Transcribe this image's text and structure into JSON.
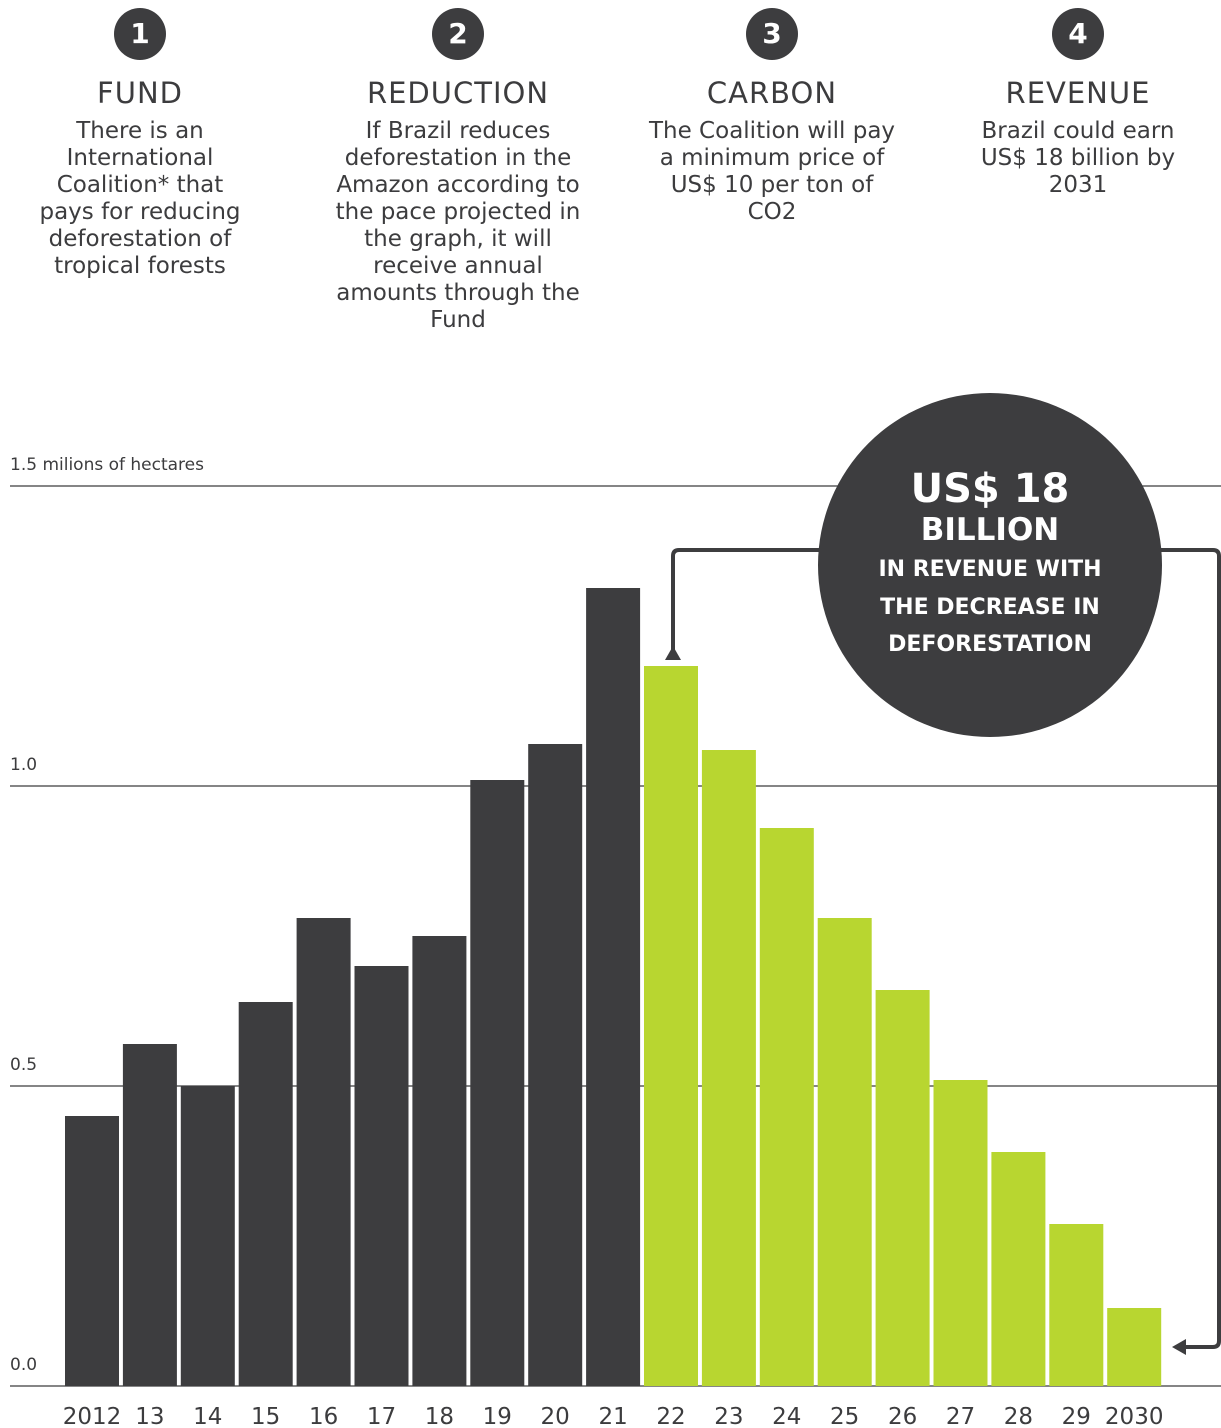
{
  "steps": [
    {
      "number": "1",
      "title": "FUND",
      "text": "There is an International Coalition* that pays for reducing deforestation of tropical forests"
    },
    {
      "number": "2",
      "title": "REDUCTION",
      "text": "If Brazil reduces deforestation in the Amazon according to the pace projected in the graph, it will receive annual amounts through the Fund"
    },
    {
      "number": "3",
      "title": "CARBON",
      "text": "The Coalition will pay a minimum price of US$ 10 per ton of CO2"
    },
    {
      "number": "4",
      "title": "REVENUE",
      "text": "Brazil could earn US$ 18 billion by 2031"
    }
  ],
  "badge": {
    "line1": "US$ 18",
    "line2": "BILLION",
    "line3": "IN REVENUE WITH",
    "line4": "THE DECREASE IN",
    "line5": "DEFORESTATION"
  },
  "colors": {
    "historical": "#3d3d3f",
    "projected": "#b8d630",
    "badge": "#3d3d3f"
  },
  "chart_data": {
    "type": "bar",
    "categories": [
      "2012",
      "13",
      "14",
      "15",
      "16",
      "17",
      "18",
      "19",
      "20",
      "21",
      "22",
      "23",
      "24",
      "25",
      "26",
      "27",
      "28",
      "29",
      "2030"
    ],
    "series": [
      {
        "values": [
          0.45,
          0.57,
          0.5,
          0.64,
          0.78,
          0.7,
          0.75,
          1.01,
          1.07,
          1.33,
          null,
          null,
          null,
          null,
          null,
          null,
          null,
          null,
          null
        ]
      },
      {
        "values": [
          null,
          null,
          null,
          null,
          null,
          null,
          null,
          null,
          null,
          null,
          1.2,
          1.06,
          0.93,
          0.78,
          0.66,
          0.51,
          0.39,
          0.27,
          0.13
        ]
      }
    ],
    "y_ticks": [
      "0.0",
      "0.5",
      "1.0",
      "1.5 milions of hectares"
    ],
    "y_tick_values": [
      0,
      0.5,
      1.0,
      1.5
    ],
    "ylim": [
      0,
      1.5
    ],
    "grid": true
  }
}
